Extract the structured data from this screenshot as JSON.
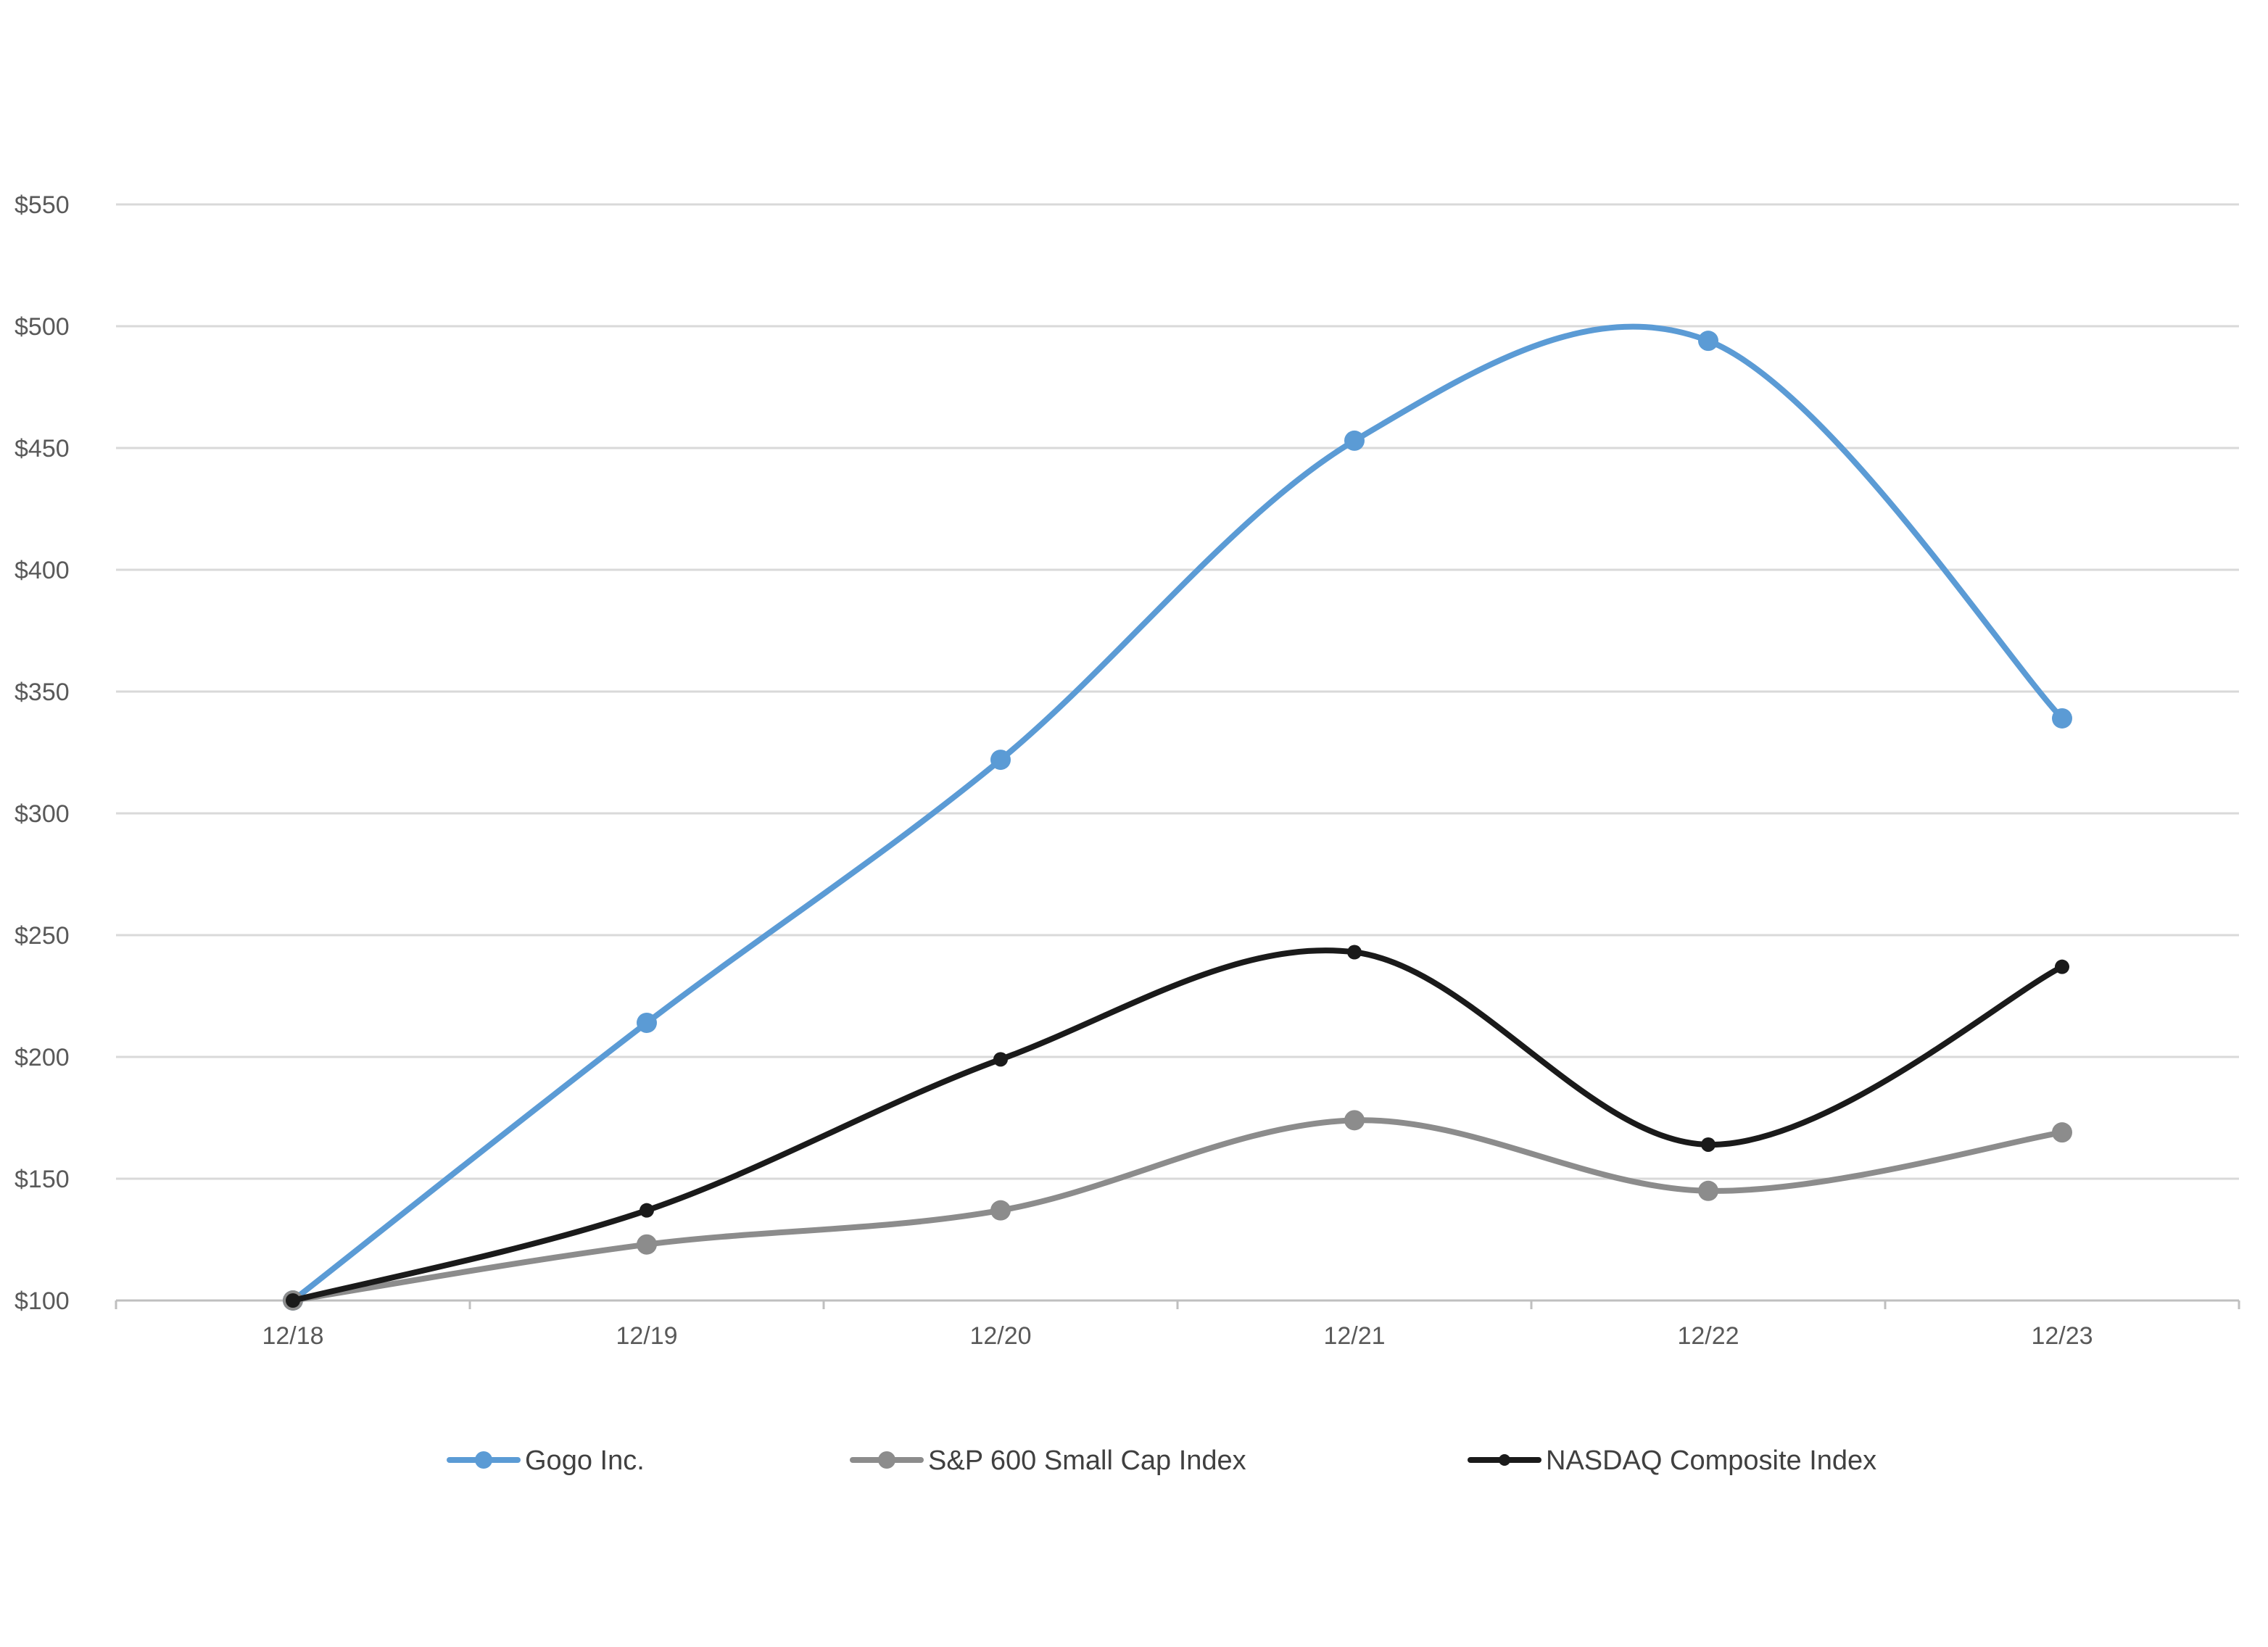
{
  "chart_data": {
    "type": "line",
    "title": "",
    "xlabel": "",
    "ylabel": "",
    "categories": [
      "12/18",
      "12/19",
      "12/20",
      "12/21",
      "12/22",
      "12/23"
    ],
    "y_tick_labels": [
      "$100",
      "$150",
      "$200",
      "$250",
      "$300",
      "$350",
      "$400",
      "$450",
      "$500",
      "$550"
    ],
    "y_ticks": [
      100,
      150,
      200,
      250,
      300,
      350,
      400,
      450,
      500,
      550
    ],
    "ylim": [
      100,
      550
    ],
    "grid": true,
    "legend_position": "bottom",
    "series": [
      {
        "name": "Gogo Inc.",
        "color": "#5b9bd5",
        "values": [
          100,
          214,
          322,
          453,
          494,
          339
        ]
      },
      {
        "name": "S&P 600 Small Cap Index",
        "color": "#8c8c8c",
        "values": [
          100,
          123,
          137,
          174,
          145,
          169
        ]
      },
      {
        "name": "NASDAQ Composite Index",
        "color": "#1a1a1a",
        "values": [
          100,
          137,
          199,
          243,
          164,
          237
        ]
      }
    ]
  }
}
